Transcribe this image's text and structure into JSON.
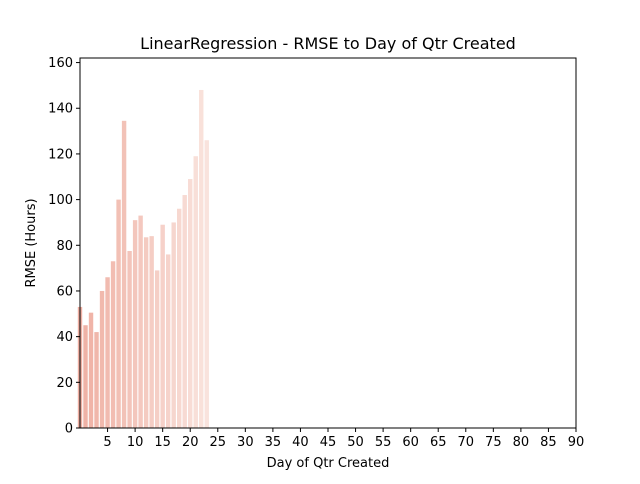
{
  "chart_data": {
    "type": "bar",
    "title": "LinearRegression - RMSE to Day of Qtr Created",
    "xlabel": "Day of Qtr Created",
    "ylabel": "RMSE (Hours)",
    "xlim": [
      0,
      90
    ],
    "ylim": [
      0,
      162
    ],
    "x_ticks": [
      "5",
      "10",
      "15",
      "20",
      "25",
      "30",
      "35",
      "40",
      "45",
      "50",
      "55",
      "60",
      "65",
      "70",
      "75",
      "80",
      "85",
      "90"
    ],
    "y_ticks": [
      "0",
      "20",
      "40",
      "60",
      "80",
      "100",
      "120",
      "140",
      "160"
    ],
    "grid": false,
    "bar_color_start": "#efb0a3",
    "bar_color_end": "#f9e3dd",
    "x": [
      0,
      1,
      2,
      3,
      4,
      5,
      6,
      7,
      8,
      9,
      10,
      11,
      12,
      13,
      14,
      15,
      16,
      17,
      18,
      19,
      20,
      21,
      22,
      23
    ],
    "values": [
      53,
      45,
      50.5,
      42,
      60,
      66,
      73,
      100,
      134.5,
      77.5,
      91,
      93,
      83.5,
      84,
      69,
      89,
      76,
      90,
      96,
      102,
      109,
      119,
      148,
      126
    ]
  }
}
